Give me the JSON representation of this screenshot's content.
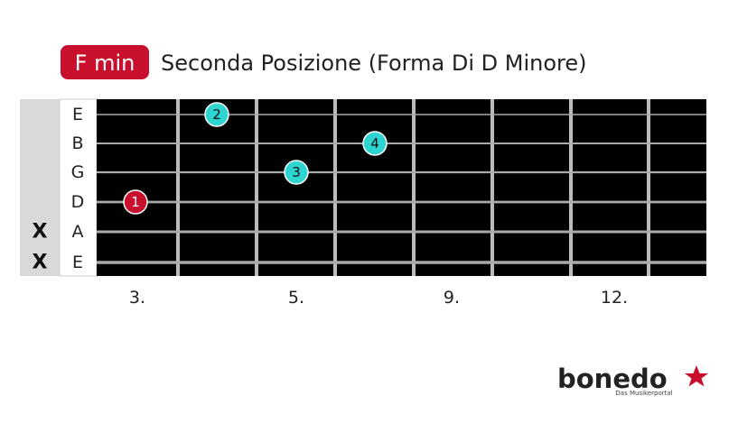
{
  "header": {
    "badge": "F min",
    "title": "Seconda Posizione (Forma Di D Minore)"
  },
  "strings": [
    "E",
    "B",
    "G",
    "D",
    "A",
    "E"
  ],
  "muted": [
    "X",
    "X"
  ],
  "fingers": [
    "1",
    "2",
    "3",
    "4"
  ],
  "fret_labels": [
    "3.",
    "5.",
    "9.",
    "12."
  ],
  "logo": {
    "name": "bonedo",
    "tagline": "Das Musikerportal"
  }
}
